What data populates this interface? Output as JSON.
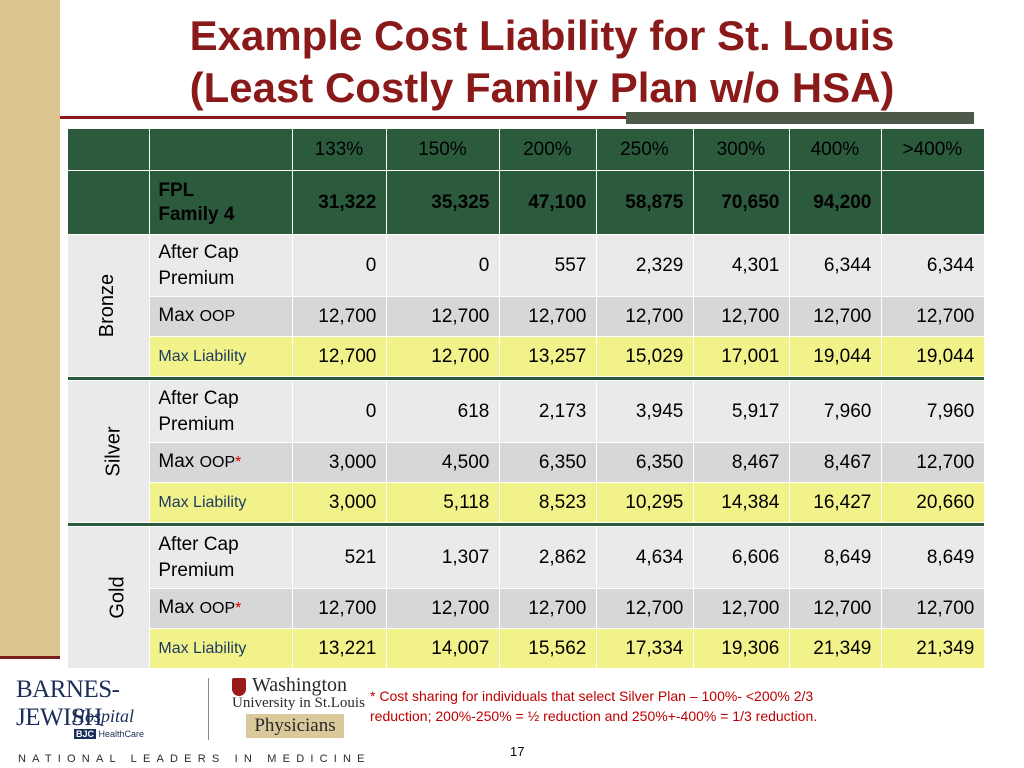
{
  "title": {
    "line1": "Example Cost Liability for St. Louis",
    "line2": "(Least Costly Family Plan w/o HSA)"
  },
  "table": {
    "columns": [
      "133%",
      "150%",
      "200%",
      "250%",
      "300%",
      "400%",
      ">400%"
    ],
    "fpl": {
      "label1": "FPL",
      "label2": "Family 4",
      "values": [
        "31,322",
        "35,325",
        "47,100",
        "58,875",
        "70,650",
        "94,200",
        ""
      ]
    },
    "tiers": [
      {
        "name": "Bronze",
        "premium_label1": "After Cap",
        "premium_label2": "Premium",
        "premium": [
          "0",
          "0",
          "557",
          "2,329",
          "4,301",
          "6,344",
          "6,344"
        ],
        "oop_label_max": "Max",
        "oop_label_oop": "OOP",
        "oop_star": "",
        "oop": [
          "12,700",
          "12,700",
          "12,700",
          "12,700",
          "12,700",
          "12,700",
          "12,700"
        ],
        "liability_label": "Max Liability",
        "liability": [
          "12,700",
          "12,700",
          "13,257",
          "15,029",
          "17,001",
          "19,044",
          "19,044"
        ]
      },
      {
        "name": "Silver",
        "premium_label1": "After Cap",
        "premium_label2": "Premium",
        "premium": [
          "0",
          "618",
          "2,173",
          "3,945",
          "5,917",
          "7,960",
          "7,960"
        ],
        "oop_label_max": "Max",
        "oop_label_oop": "OOP",
        "oop_star": "*",
        "oop": [
          "3,000",
          "4,500",
          "6,350",
          "6,350",
          "8,467",
          "8,467",
          "12,700"
        ],
        "liability_label": "Max Liability",
        "liability": [
          "3,000",
          "5,118",
          "8,523",
          "10,295",
          "14,384",
          "16,427",
          "20,660"
        ]
      },
      {
        "name": "Gold",
        "premium_label1": "After Cap",
        "premium_label2": "Premium",
        "premium": [
          "521",
          "1,307",
          "2,862",
          "4,634",
          "6,606",
          "8,649",
          "8,649"
        ],
        "oop_label_max": "Max",
        "oop_label_oop": "OOP",
        "oop_star": "*",
        "oop": [
          "12,700",
          "12,700",
          "12,700",
          "12,700",
          "12,700",
          "12,700",
          "12,700"
        ],
        "liability_label": "Max Liability",
        "liability": [
          "13,221",
          "14,007",
          "15,562",
          "17,334",
          "19,306",
          "21,349",
          "21,349"
        ]
      }
    ]
  },
  "footnote": {
    "line1": "* Cost sharing for  individuals that select Silver Plan – 100%- <200% 2/3",
    "line2": "reduction; 200%-250% = ½ reduction and 250%+-400% = 1/3 reduction."
  },
  "page_number": "17",
  "logos": {
    "bjh_name": "BARNES-JEWISH",
    "bjh_sub": "Hospital",
    "bjh_bjc": "BJC",
    "bjh_healthcare": "HealthCare",
    "wu_line1": "Washington",
    "wu_line2": "University in St.Louis",
    "wu_physicians": "Physicians"
  },
  "tagline": "NATIONAL LEADERS IN MEDICINE",
  "colors": {
    "header_green": "#2b5a3d",
    "title_red": "#8a1a1a",
    "liability_yellow": "#f2f28a",
    "band_tan": "#dcc58e"
  }
}
